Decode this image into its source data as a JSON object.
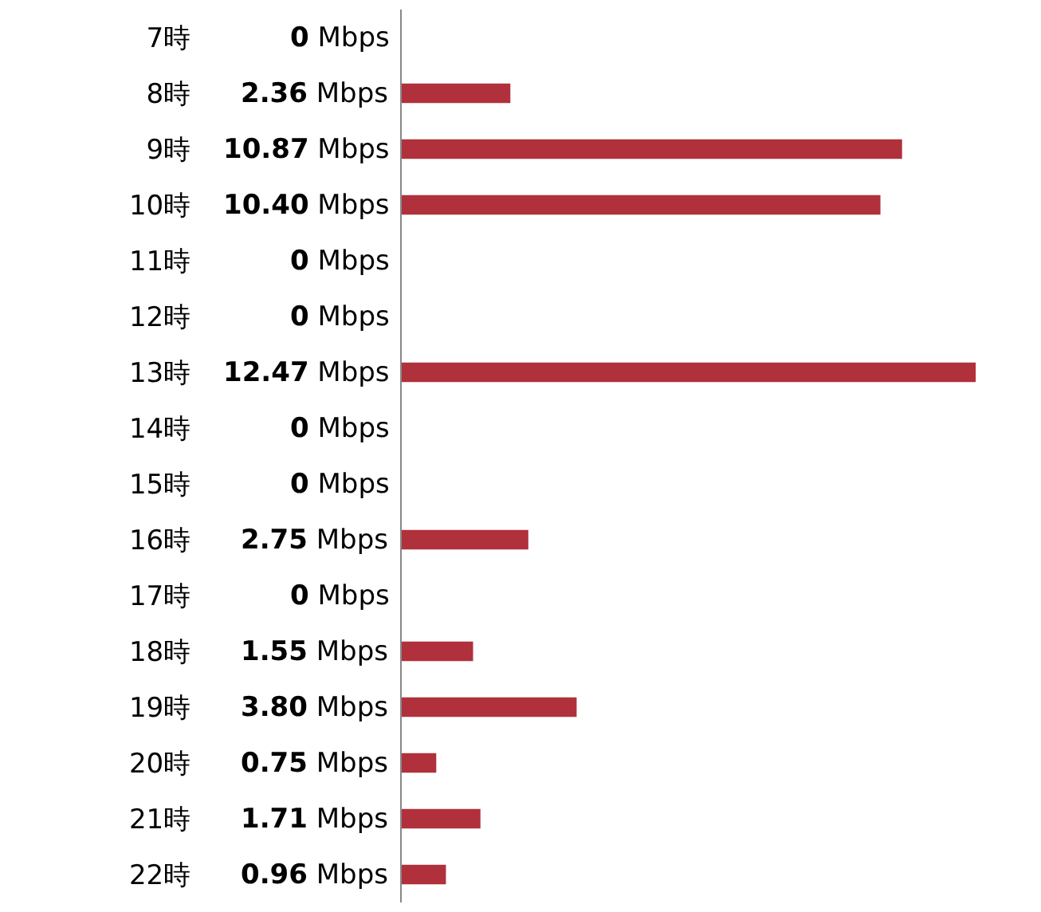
{
  "chart_data": {
    "type": "bar",
    "orientation": "horizontal",
    "categories": [
      "7時",
      "8時",
      "9時",
      "10時",
      "11時",
      "12時",
      "13時",
      "14時",
      "15時",
      "16時",
      "17時",
      "18時",
      "19時",
      "20時",
      "21時",
      "22時"
    ],
    "values": [
      0,
      2.36,
      10.87,
      10.4,
      0,
      0,
      12.47,
      0,
      0,
      2.75,
      0,
      1.55,
      3.8,
      0.75,
      1.71,
      0.96
    ],
    "value_labels": [
      "0 Mbps",
      "2.36 Mbps",
      "10.87 Mbps",
      "10.40 Mbps",
      "0 Mbps",
      "0 Mbps",
      "12.47 Mbps",
      "0 Mbps",
      "0 Mbps",
      "2.75 Mbps",
      "0 Mbps",
      "1.55 Mbps",
      "3.80 Mbps",
      "0.75 Mbps",
      "1.71 Mbps",
      "0.96 Mbps"
    ],
    "color": "#b0303c",
    "tick_labels": "y",
    "legend": false
  }
}
